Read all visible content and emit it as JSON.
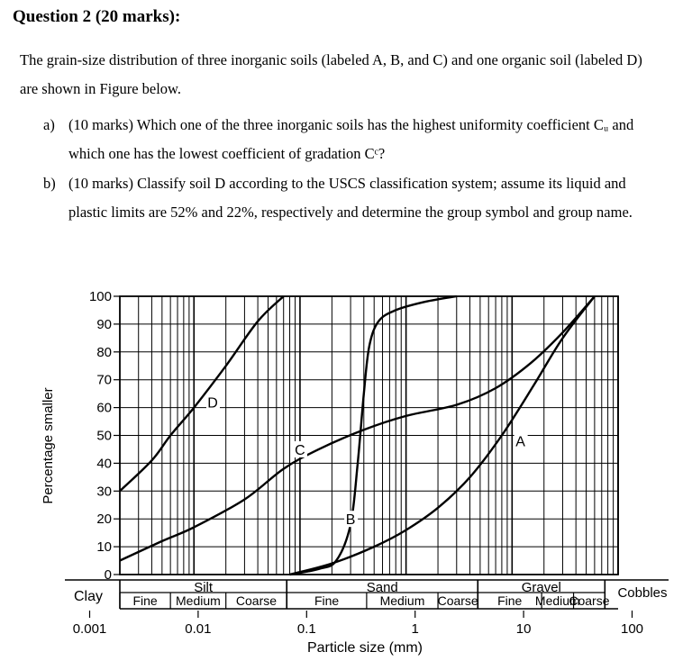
{
  "question": {
    "title": "Question 2 (20 marks):",
    "intro": "The grain-size distribution of three inorganic soils (labeled A, B, and C) and one organic soil (labeled D) are shown in Figure below.",
    "parts": [
      {
        "label": "a)",
        "text": "(10 marks) Which one of the three inorganic soils has the highest uniformity coefficient Cᵤ and which one has the lowest coefficient of gradation Cᶜ?"
      },
      {
        "label": "b)",
        "text": "(10 marks) Classify soil D according to the USCS classification system; assume its liquid and plastic limits are 52% and 22%, respectively and determine the group symbol and group name."
      }
    ]
  },
  "chart_data": {
    "type": "line",
    "xscale": "log",
    "xlim": [
      0.002,
      100
    ],
    "ylim": [
      0,
      100
    ],
    "xlabel": "Particle size (mm)",
    "ylabel": "Percentage smaller",
    "grid": true,
    "xticks": [
      "0.001",
      "0.01",
      "0.1",
      "1",
      "10",
      "100"
    ],
    "xtick_values": [
      0.001,
      0.01,
      0.1,
      1,
      10,
      100
    ],
    "yticks": [
      "0",
      "10",
      "20",
      "30",
      "40",
      "50",
      "60",
      "70",
      "80",
      "90",
      "100"
    ],
    "ytick_values": [
      0,
      10,
      20,
      30,
      40,
      50,
      60,
      70,
      80,
      90,
      100
    ],
    "series": [
      {
        "name": "A",
        "label_at": [
          12,
          48
        ],
        "x": [
          0.08,
          0.2,
          0.5,
          1,
          2,
          4,
          8,
          16,
          30,
          60
        ],
        "y": [
          0,
          4,
          10,
          16,
          24,
          35,
          50,
          68,
          85,
          100
        ]
      },
      {
        "name": "B",
        "label_at": [
          0.3,
          20
        ],
        "x": [
          0.08,
          0.15,
          0.22,
          0.3,
          0.35,
          0.4,
          0.45,
          0.55,
          0.8,
          1.5,
          3
        ],
        "y": [
          0,
          2,
          5,
          18,
          40,
          65,
          82,
          91,
          95,
          98,
          100
        ]
      },
      {
        "name": "C",
        "label_at": [
          0.1,
          45
        ],
        "x": [
          0.002,
          0.005,
          0.01,
          0.03,
          0.07,
          0.15,
          0.4,
          1,
          3,
          7,
          15,
          30,
          60
        ],
        "y": [
          5,
          12,
          17,
          27,
          38,
          45,
          52,
          57,
          61,
          67,
          76,
          87,
          100
        ]
      },
      {
        "name": "D",
        "label_at": [
          0.015,
          62
        ],
        "x": [
          0.002,
          0.004,
          0.006,
          0.01,
          0.02,
          0.04,
          0.07
        ],
        "y": [
          30,
          41,
          50,
          60,
          75,
          91,
          100
        ]
      }
    ],
    "classification": {
      "row1": [
        {
          "label": "Silt",
          "from": 0.002,
          "to": 0.075
        },
        {
          "label": "Sand",
          "from": 0.075,
          "to": 4.75
        },
        {
          "label": "Gravel",
          "from": 4.75,
          "to": 75
        }
      ],
      "row2": [
        {
          "label": "Fine",
          "from": 0.002,
          "to": 0.006
        },
        {
          "label": "Medium",
          "from": 0.006,
          "to": 0.02
        },
        {
          "label": "Coarse",
          "from": 0.02,
          "to": 0.075
        },
        {
          "label": "Fine",
          "from": 0.075,
          "to": 0.425
        },
        {
          "label": "Medium",
          "from": 0.425,
          "to": 2
        },
        {
          "label": "Coarse",
          "from": 2,
          "to": 4.75
        },
        {
          "label": "Fine",
          "from": 4.75,
          "to": 19
        },
        {
          "label": "Medium",
          "from": 19,
          "to": 38
        },
        {
          "label": "Coarse",
          "from": 38,
          "to": 75
        }
      ],
      "clay_label": "Clay",
      "cobbles_label": "Cobbles"
    }
  }
}
